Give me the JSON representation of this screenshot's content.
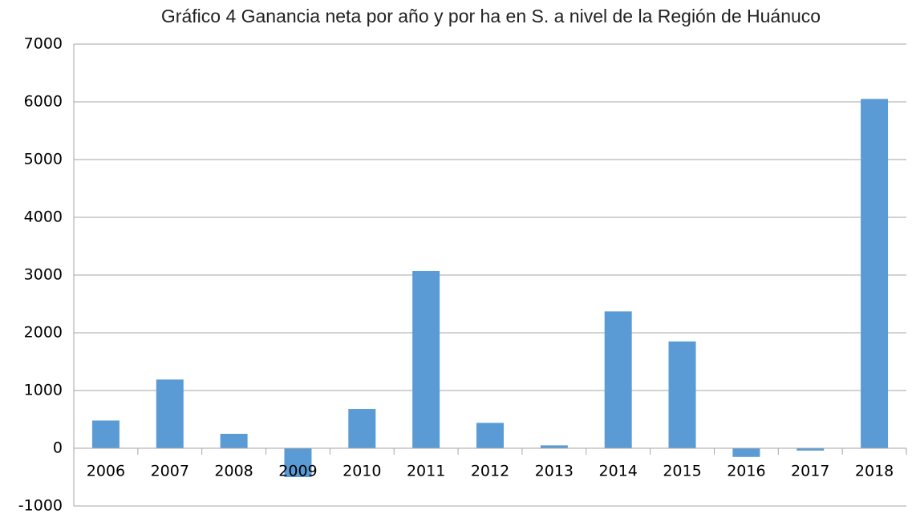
{
  "chart_data": {
    "type": "bar",
    "title": "Gráfico 4  Ganancia neta por año y por ha en S. a nivel de la Región de Huánuco",
    "categories": [
      "2006",
      "2007",
      "2008",
      "2009",
      "2010",
      "2011",
      "2012",
      "2013",
      "2014",
      "2015",
      "2016",
      "2017",
      "2018"
    ],
    "values": [
      480,
      1190,
      250,
      -500,
      680,
      3070,
      440,
      50,
      2370,
      1850,
      -150,
      -40,
      6050
    ],
    "color": "#5b9bd5",
    "ylim": [
      -1000,
      7000
    ],
    "yticks": [
      -1000,
      0,
      1000,
      2000,
      3000,
      4000,
      5000,
      6000,
      7000
    ],
    "grid": true
  }
}
